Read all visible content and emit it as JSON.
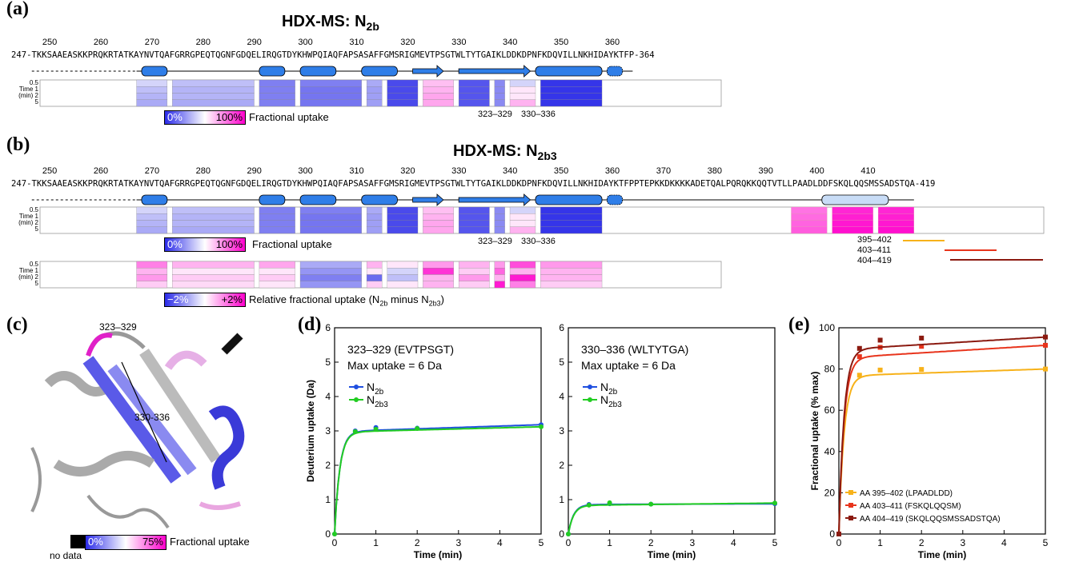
{
  "panels": {
    "a": {
      "label": "(a)",
      "title": "HDX-MS: N",
      "title_sub": "2b",
      "ruler": [
        "250",
        "260",
        "270",
        "280",
        "290",
        "300",
        "310",
        "320",
        "330",
        "340",
        "350",
        "360"
      ],
      "sequence": "247-TKKSAAEASKKPRQKRTATKAYNVTQAFGRRGPEQTQGNFGDQELIRQGTDYKHWPQIAQFAPSASAFFGMSRIGMEVTPSGTWLTYTGAIKLDDKDPNFKDQVILLNKHIDAYKTFP-364",
      "time_label": [
        "Time",
        "(min)"
      ],
      "times": [
        "0.5",
        "1",
        "2",
        "5"
      ],
      "scale_low": "0%",
      "scale_high": "100%",
      "scale_caption": "Fractional uptake",
      "peptides": [
        "323–329",
        "330–336"
      ]
    },
    "b": {
      "label": "(b)",
      "title": "HDX-MS: N",
      "title_sub": "2b3",
      "ruler": [
        "250",
        "260",
        "270",
        "280",
        "290",
        "300",
        "310",
        "320",
        "330",
        "340",
        "350",
        "360",
        "370",
        "380",
        "390",
        "400",
        "410"
      ],
      "sequence": "247-TKKSAAEASKKPRQKRTATKAYNVTQAFGRRGPEQTQGNFGDQELIRQGTDYKHWPQIAQFAPSASAFFGMSRIGMEVTPSGTWLTYTGAIKLDDKDPNFKDQVILLNKHIDAYKTFPPTEPKKDKKKKADETQALPQRQKKQQTVTLLPAADLDDFSKQLQQSMSSADSTQA-419",
      "time_label": [
        "Time",
        "(min)"
      ],
      "times": [
        "0.5",
        "1",
        "2",
        "5"
      ],
      "scale_low": "0%",
      "scale_high": "100%",
      "scale_caption": "Fractional uptake",
      "peptides": [
        "323–329",
        "330–336"
      ],
      "extra_peptides": [
        "395–402",
        "403–411",
        "404–419"
      ],
      "diff_low": "−2%",
      "diff_high": "+2%",
      "diff_caption": "Relative fractional uptake (N",
      "diff_caption_sub1": "2b",
      "diff_caption_mid": " minus N",
      "diff_caption_sub2": "2b3",
      "diff_caption_end": ")"
    },
    "c": {
      "label": "(c)",
      "peptide_a": "323–329",
      "peptide_b": "330-336",
      "scale_low": "0%",
      "scale_high": "75%",
      "scale_caption": "Fractional uptake",
      "no_data": "no data"
    },
    "d": {
      "label": "(d)",
      "ylabel": "Deuterium uptake (Da)",
      "xlabel": "Time (min)"
    },
    "e": {
      "label": "(e)",
      "ylabel": "Fractional uptake (% max)",
      "xlabel": "Time (min)"
    }
  },
  "colors": {
    "blue": "#2a2ae8",
    "magenta": "#ff00cc",
    "ribbon": "#3a8df0",
    "series_blue": "#1f4fe0",
    "series_green": "#22cc22",
    "orange": "#f7b21a",
    "red": "#e8341c",
    "darkred": "#8b1a10"
  },
  "chart_data": [
    {
      "type": "line",
      "title": "323–329 (EVTPSGT)",
      "subtitle": "Max uptake = 6 Da",
      "xlabel": "Time (min)",
      "ylabel": "Deuterium uptake (Da)",
      "xlim": [
        0,
        5
      ],
      "ylim": [
        0,
        6
      ],
      "xticks": [
        "0",
        "1",
        "2",
        "3",
        "4",
        "5"
      ],
      "yticks": [
        "0",
        "1",
        "2",
        "3",
        "4",
        "5",
        "6"
      ],
      "legend": "top-left",
      "series": [
        {
          "name": "N2b",
          "name_main": "N",
          "name_sub": "2b",
          "x": [
            0,
            0.5,
            1,
            2,
            5
          ],
          "y": [
            0,
            3.0,
            3.1,
            3.08,
            3.18
          ]
        },
        {
          "name": "N2b3",
          "name_main": "N",
          "name_sub": "2b3",
          "x": [
            0,
            0.5,
            1,
            2,
            5
          ],
          "y": [
            0,
            2.98,
            3.05,
            3.07,
            3.12
          ]
        }
      ]
    },
    {
      "type": "line",
      "title": "330–336 (WLTYTGA)",
      "subtitle": "Max uptake = 6 Da",
      "xlabel": "Time (min)",
      "ylabel": "",
      "xlim": [
        0,
        5
      ],
      "ylim": [
        0,
        6
      ],
      "xticks": [
        "0",
        "1",
        "2",
        "3",
        "4",
        "5"
      ],
      "yticks": [
        "0",
        "1",
        "2",
        "3",
        "4",
        "5",
        "6"
      ],
      "legend": "top-left",
      "series": [
        {
          "name": "N2b",
          "name_main": "N",
          "name_sub": "2b",
          "x": [
            0,
            0.5,
            1,
            2,
            5
          ],
          "y": [
            0,
            0.86,
            0.88,
            0.87,
            0.88
          ]
        },
        {
          "name": "N2b3",
          "name_main": "N",
          "name_sub": "2b3",
          "x": [
            0,
            0.5,
            1,
            2,
            5
          ],
          "y": [
            0,
            0.84,
            0.91,
            0.87,
            0.9
          ]
        }
      ]
    },
    {
      "type": "line",
      "title": "",
      "xlabel": "Time (min)",
      "ylabel": "Fractional uptake (% max)",
      "xlim": [
        0,
        5
      ],
      "ylim": [
        0,
        100
      ],
      "xticks": [
        "0",
        "1",
        "2",
        "3",
        "4",
        "5"
      ],
      "yticks": [
        "0",
        "20",
        "40",
        "60",
        "80",
        "100"
      ],
      "legend": "bottom-right",
      "series": [
        {
          "name": "AA 395–402 (LPAADLDD)",
          "x": [
            0,
            0.5,
            1,
            2,
            5
          ],
          "y": [
            0,
            77,
            79.5,
            79.8,
            80
          ]
        },
        {
          "name": "AA 403–411 (FSKQLQQSM)",
          "x": [
            0,
            0.5,
            1,
            2,
            5
          ],
          "y": [
            0,
            86,
            90.5,
            91,
            91.5
          ]
        },
        {
          "name": "AA 404–419 (SKQLQQSMSSADSTQA)",
          "x": [
            0,
            0.5,
            1,
            2,
            5
          ],
          "y": [
            0,
            90,
            94,
            95,
            95.5
          ]
        }
      ]
    }
  ]
}
